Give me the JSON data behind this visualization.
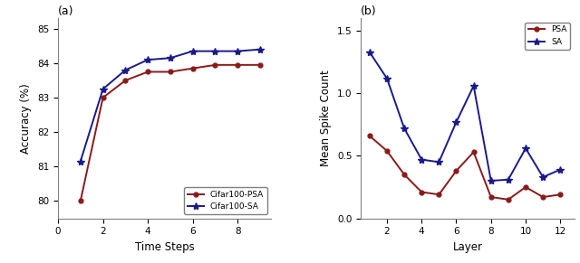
{
  "left": {
    "title": "(a)",
    "xlabel": "Time Steps",
    "ylabel": "Accuracy (%)",
    "psa_x": [
      1,
      2,
      3,
      4,
      5,
      6,
      7,
      8,
      9
    ],
    "psa_y": [
      80.0,
      83.0,
      83.5,
      83.75,
      83.75,
      83.85,
      83.95,
      83.95,
      83.95
    ],
    "sa_x": [
      1,
      2,
      3,
      4,
      5,
      6,
      7,
      8,
      9
    ],
    "sa_y": [
      81.15,
      83.25,
      83.8,
      84.1,
      84.15,
      84.35,
      84.35,
      84.35,
      84.4
    ],
    "ylim": [
      79.5,
      85.3
    ],
    "yticks": [
      80,
      81,
      82,
      83,
      84,
      85
    ],
    "xlim": [
      0,
      9.5
    ],
    "xticks": [
      0,
      2,
      4,
      6,
      8
    ],
    "psa_label": "Cifar100-PSA",
    "sa_label": "Cifar100-SA",
    "psa_color": "#8b1a1a",
    "sa_color": "#1a1a8b",
    "legend_loc": "lower right"
  },
  "right": {
    "title": "(b)",
    "xlabel": "Layer",
    "ylabel": "Mean Spike Count",
    "psa_x": [
      1,
      2,
      3,
      4,
      5,
      6,
      7,
      8,
      9,
      10,
      11,
      12
    ],
    "psa_y": [
      0.66,
      0.54,
      0.35,
      0.21,
      0.19,
      0.38,
      0.53,
      0.17,
      0.15,
      0.25,
      0.17,
      0.19
    ],
    "sa_x": [
      1,
      2,
      3,
      4,
      5,
      6,
      7,
      8,
      9,
      10,
      11,
      12
    ],
    "sa_y": [
      1.33,
      1.12,
      0.72,
      0.47,
      0.45,
      0.77,
      1.06,
      0.3,
      0.31,
      0.56,
      0.33,
      0.39
    ],
    "ylim": [
      0.0,
      1.6
    ],
    "yticks": [
      0.0,
      0.5,
      1.0,
      1.5
    ],
    "xlim": [
      0.5,
      12.8
    ],
    "xticks": [
      2,
      4,
      6,
      8,
      10,
      12
    ],
    "psa_label": "PSA",
    "sa_label": "SA",
    "psa_color": "#8b1a1a",
    "sa_color": "#1a1a8b",
    "legend_loc": "upper right"
  }
}
